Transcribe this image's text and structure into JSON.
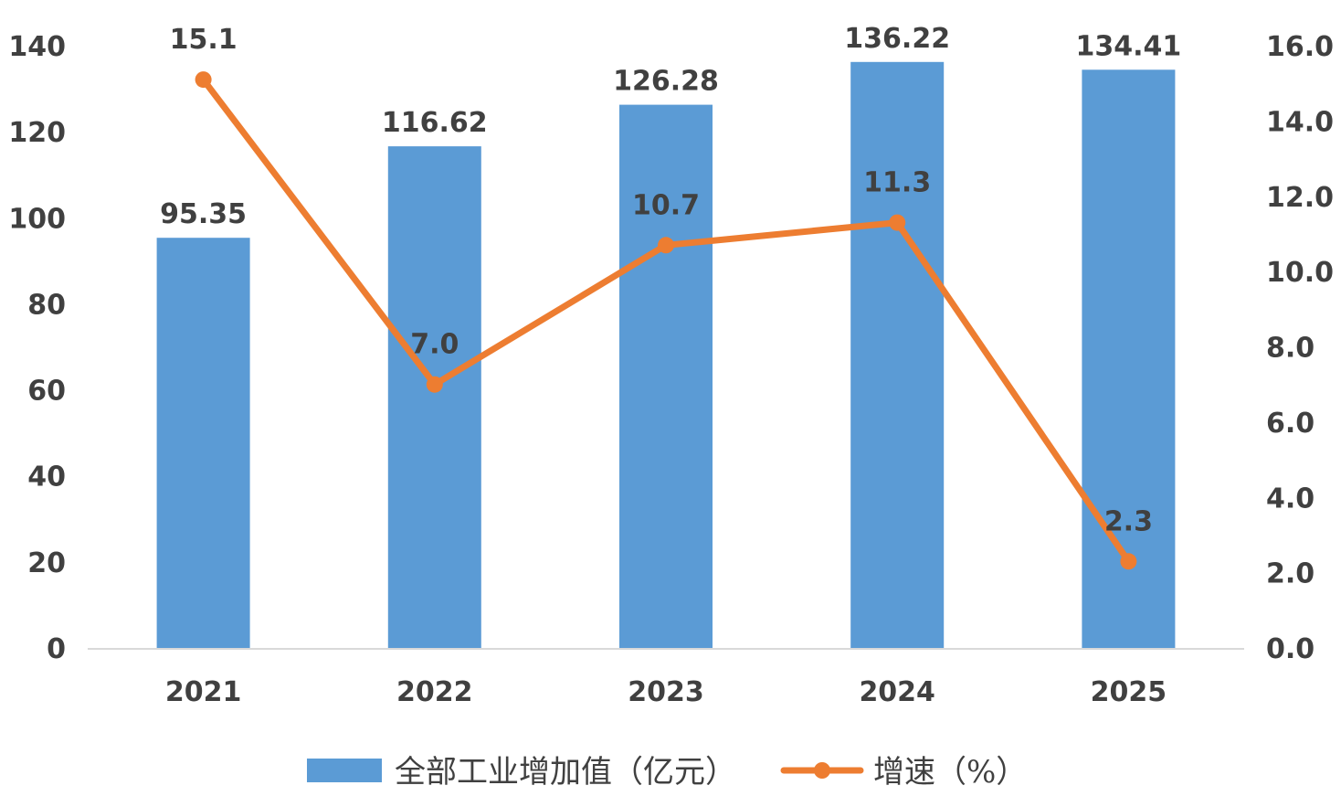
{
  "chart_data": {
    "type": "bar+line",
    "categories": [
      "2021",
      "2022",
      "2023",
      "2024",
      "2025"
    ],
    "series": [
      {
        "name": "全部工业增加值（亿元）",
        "type": "bar",
        "axis": "left",
        "values": [
          95.35,
          116.62,
          126.28,
          136.22,
          134.41
        ],
        "labels": [
          "95.35",
          "116.62",
          "126.28",
          "136.22",
          "134.41"
        ]
      },
      {
        "name": "增速（%）",
        "type": "line",
        "axis": "right",
        "values": [
          15.1,
          7.0,
          10.7,
          11.3,
          2.3
        ],
        "labels": [
          "15.1",
          "7.0",
          "10.7",
          "11.3",
          "2.3"
        ]
      }
    ],
    "y_left": {
      "range": [
        0,
        140
      ],
      "ticks": [
        "0",
        "20",
        "40",
        "60",
        "80",
        "100",
        "120",
        "140"
      ]
    },
    "y_right": {
      "range": [
        0,
        16
      ],
      "ticks": [
        "0.0",
        "2.0",
        "4.0",
        "6.0",
        "8.0",
        "10.0",
        "12.0",
        "14.0",
        "16.0"
      ]
    },
    "grid": false,
    "legend_position": "bottom",
    "colors": {
      "bar": "#5B9BD5",
      "line": "#ED7D31",
      "axis": "#D9D9D9",
      "text": "#404040"
    }
  }
}
